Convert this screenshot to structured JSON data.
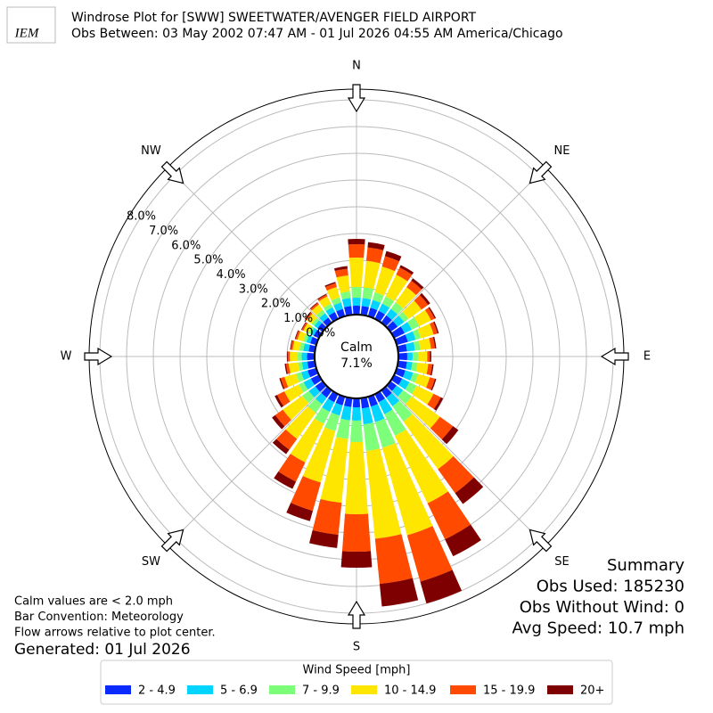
{
  "chart_data": {
    "type": "windrose",
    "logo_text": "IEM",
    "title": "Windrose Plot for [SWW] SWEETWATER/AVENGER FIELD AIRPORT",
    "subtitle": "Obs Between: 03 May 2002 07:47 AM - 01 Jul 2026 04:55 AM America/Chicago",
    "compass": [
      "N",
      "NE",
      "E",
      "SE",
      "S",
      "SW",
      "W",
      "NW"
    ],
    "calm_label": "Calm",
    "calm": {
      "value": 7.1,
      "label": "7.1%"
    },
    "rlim": [
      0,
      8.4
    ],
    "rticks": [
      {
        "value": 0,
        "label": "0.0%"
      },
      {
        "value": 1,
        "label": "1.0%"
      },
      {
        "value": 2,
        "label": "2.0%"
      },
      {
        "value": 3,
        "label": "3.0%"
      },
      {
        "value": 4,
        "label": "4.0%"
      },
      {
        "value": 5,
        "label": "5.0%"
      },
      {
        "value": 6,
        "label": "6.0%"
      },
      {
        "value": 7,
        "label": "7.0%"
      },
      {
        "value": 8,
        "label": "8.0%"
      }
    ],
    "x": [
      0,
      10,
      20,
      30,
      40,
      50,
      60,
      70,
      80,
      90,
      100,
      110,
      120,
      130,
      140,
      150,
      160,
      170,
      180,
      190,
      200,
      210,
      220,
      230,
      240,
      250,
      260,
      270,
      280,
      290,
      300,
      310,
      320,
      330,
      340,
      350
    ],
    "legend_title": "Wind Speed [mph]",
    "series": [
      {
        "name": "2 - 4.9",
        "color": "#0a2bff",
        "values": [
          0.3,
          0.3,
          0.3,
          0.3,
          0.3,
          0.3,
          0.4,
          0.4,
          0.3,
          0.3,
          0.3,
          0.3,
          0.3,
          0.25,
          0.3,
          0.3,
          0.35,
          0.35,
          0.3,
          0.3,
          0.3,
          0.3,
          0.3,
          0.3,
          0.3,
          0.3,
          0.25,
          0.25,
          0.2,
          0.2,
          0.18,
          0.2,
          0.2,
          0.25,
          0.25,
          0.3
        ]
      },
      {
        "name": "5 - 6.9",
        "color": "#00d4ff",
        "values": [
          0.3,
          0.3,
          0.3,
          0.3,
          0.3,
          0.3,
          0.3,
          0.3,
          0.3,
          0.2,
          0.2,
          0.3,
          0.3,
          0.3,
          0.4,
          0.5,
          0.6,
          0.6,
          0.5,
          0.5,
          0.4,
          0.4,
          0.3,
          0.3,
          0.3,
          0.25,
          0.2,
          0.2,
          0.2,
          0.15,
          0.13,
          0.15,
          0.2,
          0.2,
          0.25,
          0.3
        ]
      },
      {
        "name": "7 - 9.9",
        "color": "#7dff7a",
        "values": [
          0.4,
          0.4,
          0.3,
          0.3,
          0.3,
          0.2,
          0.3,
          0.2,
          0.2,
          0.2,
          0.2,
          0.2,
          0.3,
          0.4,
          0.7,
          0.9,
          1.0,
          1.0,
          0.8,
          0.7,
          0.6,
          0.5,
          0.4,
          0.3,
          0.2,
          0.2,
          0.15,
          0.15,
          0.15,
          0.12,
          0.1,
          0.12,
          0.15,
          0.15,
          0.2,
          0.25
        ]
      },
      {
        "name": "10 - 14.9",
        "color": "#ffe600",
        "values": [
          1.1,
          1.0,
          1.0,
          0.9,
          0.7,
          0.6,
          0.5,
          0.5,
          0.4,
          0.35,
          0.4,
          0.45,
          0.7,
          1.3,
          2.2,
          2.8,
          3.4,
          3.3,
          2.7,
          2.4,
          2.0,
          1.6,
          1.2,
          0.9,
          0.6,
          0.45,
          0.35,
          0.3,
          0.25,
          0.23,
          0.2,
          0.23,
          0.25,
          0.3,
          0.4,
          0.6
        ]
      },
      {
        "name": "15 - 19.9",
        "color": "#ff4a00",
        "values": [
          0.5,
          0.5,
          0.4,
          0.3,
          0.3,
          0.3,
          0.15,
          0.15,
          0.15,
          0.1,
          0.15,
          0.2,
          0.3,
          0.6,
          1.1,
          1.5,
          1.8,
          1.7,
          1.4,
          1.2,
          1.1,
          0.8,
          0.5,
          0.35,
          0.3,
          0.15,
          0.1,
          0.07,
          0.07,
          0.07,
          0.06,
          0.07,
          0.07,
          0.07,
          0.15,
          0.25
        ]
      },
      {
        "name": "20+",
        "color": "#7f0000",
        "values": [
          0.2,
          0.2,
          0.2,
          0.1,
          0.1,
          0.1,
          0.05,
          0.05,
          0.05,
          0.05,
          0.05,
          0.05,
          0.1,
          0.25,
          0.5,
          0.7,
          0.85,
          0.85,
          0.6,
          0.5,
          0.4,
          0.3,
          0.2,
          0.15,
          0.1,
          0.05,
          0.05,
          0.03,
          0.03,
          0.03,
          0.03,
          0.03,
          0.03,
          0.03,
          0.05,
          0.1
        ]
      }
    ],
    "notes": [
      "Calm values are < 2.0 mph",
      "Bar Convention: Meteorology",
      "Flow arrows relative to plot center."
    ],
    "generated": "Generated: 01 Jul 2026",
    "summary": [
      "Summary",
      "Obs Used: 185230",
      "Obs Without Wind: 0",
      "Avg Speed: 10.7 mph"
    ]
  }
}
